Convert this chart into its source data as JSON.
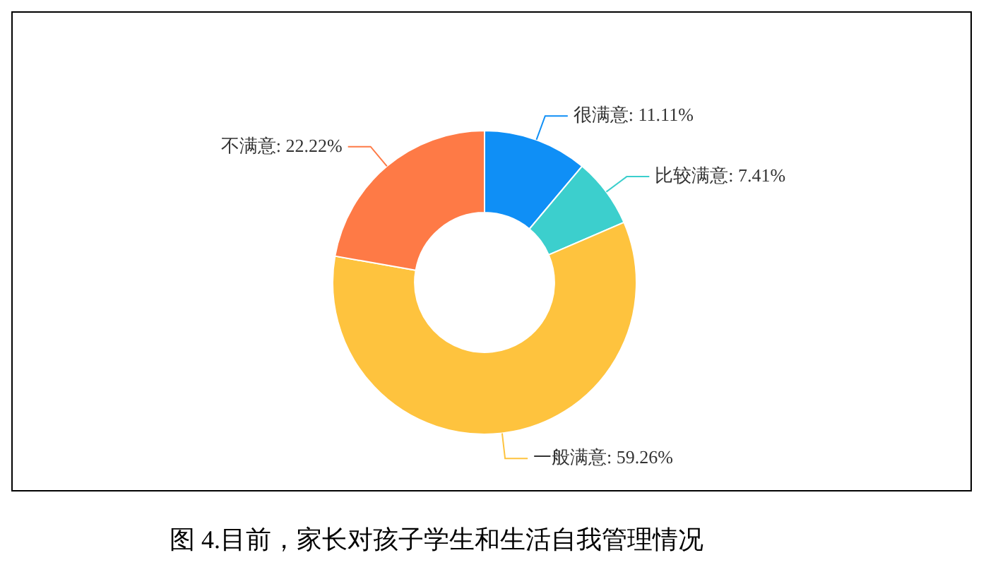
{
  "chart_data": {
    "type": "donut",
    "categories": [
      "很满意",
      "比较满意",
      "一般满意",
      "不满意"
    ],
    "values": [
      11.11,
      7.41,
      59.26,
      22.22
    ],
    "value_labels": [
      "11.11%",
      "7.41%",
      "59.26%",
      "22.22%"
    ],
    "colors": [
      "#0f8ff6",
      "#3ccfcd",
      "#fec33e",
      "#fe7a46"
    ],
    "legend": false,
    "annotations": [
      "图 4.目前，家长对孩子学生和生活自我管理情况"
    ]
  }
}
